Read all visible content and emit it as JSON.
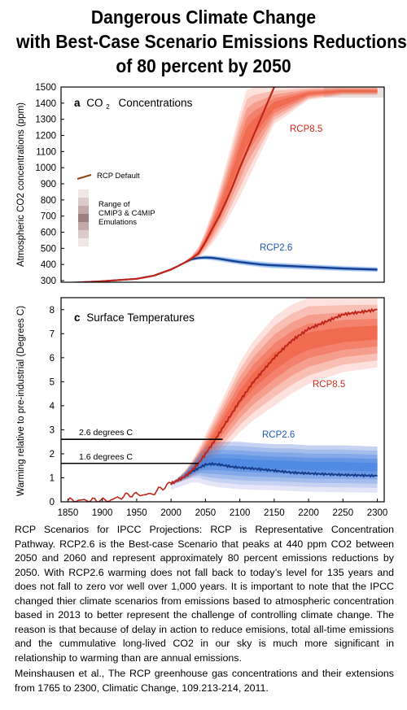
{
  "title_lines": [
    "Dangerous Climate Change",
    "with Best-Case Scenario Emissions Reductions",
    "of 80 percent by 2050"
  ],
  "colors": {
    "rcp85_line": "#c0261a",
    "rcp85_band": "#ef5a3c",
    "rcp26_line": "#163e8c",
    "rcp26_band": "#3f7fe0",
    "historical": "#c0261a",
    "default_line": "#8b4513",
    "frame": "#000000"
  },
  "panel_a": {
    "label_letter": "a",
    "label_text": "CO",
    "label_sub": "2",
    "label_rest": "Concentrations",
    "ylabel": "Atmospheric CO2 concentrations (ppm)",
    "yticks": [
      "300",
      "400",
      "500",
      "600",
      "700",
      "800",
      "900",
      "1000",
      "1100",
      "1200",
      "1300",
      "1400",
      "1500"
    ],
    "legend_default": "RCP Default",
    "legend_range": [
      "Range of",
      "CMIP3 & C4MIP",
      "Emulations"
    ],
    "rcp85_label": "RCP8.5",
    "rcp26_label": "RCP2.6"
  },
  "panel_c": {
    "label_letter": "c",
    "label_text": "Surface Temperatures",
    "ylabel": "Warming relative to pre-industrial  (Degrees C)",
    "yticks": [
      "0",
      "1",
      "2",
      "3",
      "4",
      "5",
      "6",
      "7",
      "8"
    ],
    "xticks": [
      "1850",
      "1900",
      "1950",
      "2000",
      "2050",
      "2100",
      "2150",
      "2200",
      "2250",
      "2300"
    ],
    "rcp85_label": "RCP8.5",
    "rcp26_label": "RCP2.6",
    "ref_line_high": "2.6 degrees C",
    "ref_line_low": "1.6 degrees C"
  },
  "caption": {
    "paragraph": "RCP Scenarios for IPCC Projections: RCP is Representative Concentration Pathway. RCP2.6 is the Best-case Scenario that peaks at 440 ppm CO2 between 2050 and 2060 and represent approximately 80 percent emissions reductions by 2050. With RCP2.6 warming does not fall back to today’s level for 135 years and does not fall to zero vor well over 1,000 years. It is important to note that the IPCC changed thier climate scenarios from emissions based to atmospheric concentration based in 2013 to better represent the challenge of controlling climate change. The reason is that because of delay in action to reduce emisions, total all-time emissions and the cummulative long-lived CO2 in our sky is much more significant in relationship to warming than are annual emissions.",
    "reference": "Meinshausen et al., The RCP greenhouse gas concentrations and their extensions from 1765 to 2300, Climatic Change, 109.213-214, 2011."
  },
  "chart_data": [
    {
      "type": "line",
      "title": "a CO2 Concentrations",
      "ylabel": "Atmospheric CO2 concentrations (ppm)",
      "xlim": [
        1840,
        2310
      ],
      "ylim": [
        290,
        1500
      ],
      "x": [
        1850,
        1900,
        1950,
        1975,
        2000,
        2010,
        2020,
        2030,
        2040,
        2050,
        2060,
        2070,
        2080,
        2090,
        2100,
        2110,
        2120,
        2130,
        2140,
        2150,
        2200,
        2250,
        2300
      ],
      "series": [
        {
          "name": "RCP8.5",
          "values": [
            285,
            296,
            311,
            331,
            369,
            390,
            412,
            437,
            468,
            540,
            620,
            700,
            790,
            890,
            1000,
            1100,
            1200,
            1300,
            1400,
            1500,
            null,
            null,
            null
          ],
          "band_upper": [
            285,
            296,
            311,
            331,
            369,
            392,
            420,
            455,
            510,
            610,
            730,
            870,
            1020,
            1180,
            1340,
            1480,
            1500,
            1500,
            1500,
            1500,
            1500,
            1500,
            1500
          ],
          "band_lower": [
            285,
            296,
            311,
            331,
            369,
            388,
            405,
            425,
            440,
            480,
            530,
            590,
            660,
            740,
            820,
            910,
            1000,
            1090,
            1180,
            1270,
            1420,
            1450,
            1450
          ]
        },
        {
          "name": "RCP2.6",
          "values": [
            285,
            296,
            311,
            331,
            369,
            390,
            412,
            432,
            440,
            443,
            441,
            435,
            428,
            421,
            415,
            410,
            405,
            400,
            397,
            395,
            385,
            375,
            368
          ],
          "band_upper": [
            285,
            296,
            311,
            331,
            369,
            392,
            418,
            440,
            452,
            458,
            456,
            451,
            446,
            440,
            434,
            429,
            424,
            420,
            416,
            413,
            403,
            392,
            385
          ],
          "band_lower": [
            285,
            296,
            311,
            331,
            369,
            388,
            406,
            422,
            428,
            428,
            425,
            419,
            411,
            404,
            398,
            392,
            387,
            382,
            378,
            375,
            366,
            358,
            352
          ]
        }
      ]
    },
    {
      "type": "line",
      "title": "c Surface Temperatures",
      "ylabel": "Warming relative to pre-industrial  (Degrees C)",
      "xlim": [
        1840,
        2310
      ],
      "ylim": [
        0,
        8.5
      ],
      "xticks": [
        1850,
        1900,
        1950,
        2000,
        2050,
        2100,
        2150,
        2200,
        2250,
        2300
      ],
      "x": [
        1850,
        1870,
        1890,
        1910,
        1930,
        1950,
        1970,
        1990,
        2000,
        2010,
        2020,
        2030,
        2040,
        2050,
        2060,
        2070,
        2080,
        2090,
        2100,
        2120,
        2150,
        2175,
        2200,
        2250,
        2300
      ],
      "series": [
        {
          "name": "Historical",
          "values": [
            0.08,
            0.05,
            0.12,
            0.05,
            0.25,
            0.3,
            0.25,
            0.6,
            0.75,
            0.9,
            null,
            null,
            null,
            null,
            null,
            null,
            null,
            null,
            null,
            null,
            null,
            null,
            null,
            null,
            null
          ]
        },
        {
          "name": "RCP8.5",
          "values": [
            null,
            null,
            null,
            null,
            null,
            null,
            null,
            null,
            0.75,
            0.9,
            1.05,
            1.3,
            1.6,
            2.0,
            2.4,
            2.85,
            3.3,
            3.75,
            4.2,
            5.0,
            6.0,
            6.7,
            7.2,
            7.8,
            8.0
          ],
          "band_upper": [
            null,
            null,
            null,
            null,
            null,
            null,
            null,
            null,
            0.8,
            1.0,
            1.3,
            1.7,
            2.2,
            2.8,
            3.4,
            4.0,
            4.6,
            5.2,
            5.8,
            6.7,
            7.7,
            8.2,
            8.5,
            8.5,
            8.5
          ],
          "band_lower": [
            null,
            null,
            null,
            null,
            null,
            null,
            null,
            null,
            0.7,
            0.8,
            0.9,
            1.0,
            1.2,
            1.4,
            1.7,
            2.0,
            2.3,
            2.6,
            2.9,
            3.4,
            4.0,
            4.5,
            4.9,
            5.4,
            5.6
          ]
        },
        {
          "name": "RCP2.6",
          "values": [
            null,
            null,
            null,
            null,
            null,
            null,
            null,
            null,
            0.75,
            0.9,
            1.05,
            1.25,
            1.4,
            1.55,
            1.58,
            1.55,
            1.5,
            1.45,
            1.42,
            1.38,
            1.3,
            1.22,
            1.18,
            1.12,
            1.08
          ],
          "band_upper": [
            null,
            null,
            null,
            null,
            null,
            null,
            null,
            null,
            0.8,
            1.0,
            1.25,
            1.6,
            2.0,
            2.3,
            2.45,
            2.5,
            2.5,
            2.5,
            2.5,
            2.45,
            2.4,
            2.4,
            2.35,
            2.35,
            2.3
          ],
          "band_lower": [
            null,
            null,
            null,
            null,
            null,
            null,
            null,
            null,
            0.7,
            0.8,
            0.9,
            1.0,
            1.0,
            0.9,
            0.85,
            0.8,
            0.78,
            0.75,
            0.72,
            0.7,
            0.68,
            0.65,
            0.62,
            0.6,
            0.58
          ]
        }
      ],
      "reference_lines": [
        {
          "label": "2.6 degrees C",
          "y": 2.6
        },
        {
          "label": "1.6 degrees C",
          "y": 1.6
        }
      ]
    }
  ]
}
